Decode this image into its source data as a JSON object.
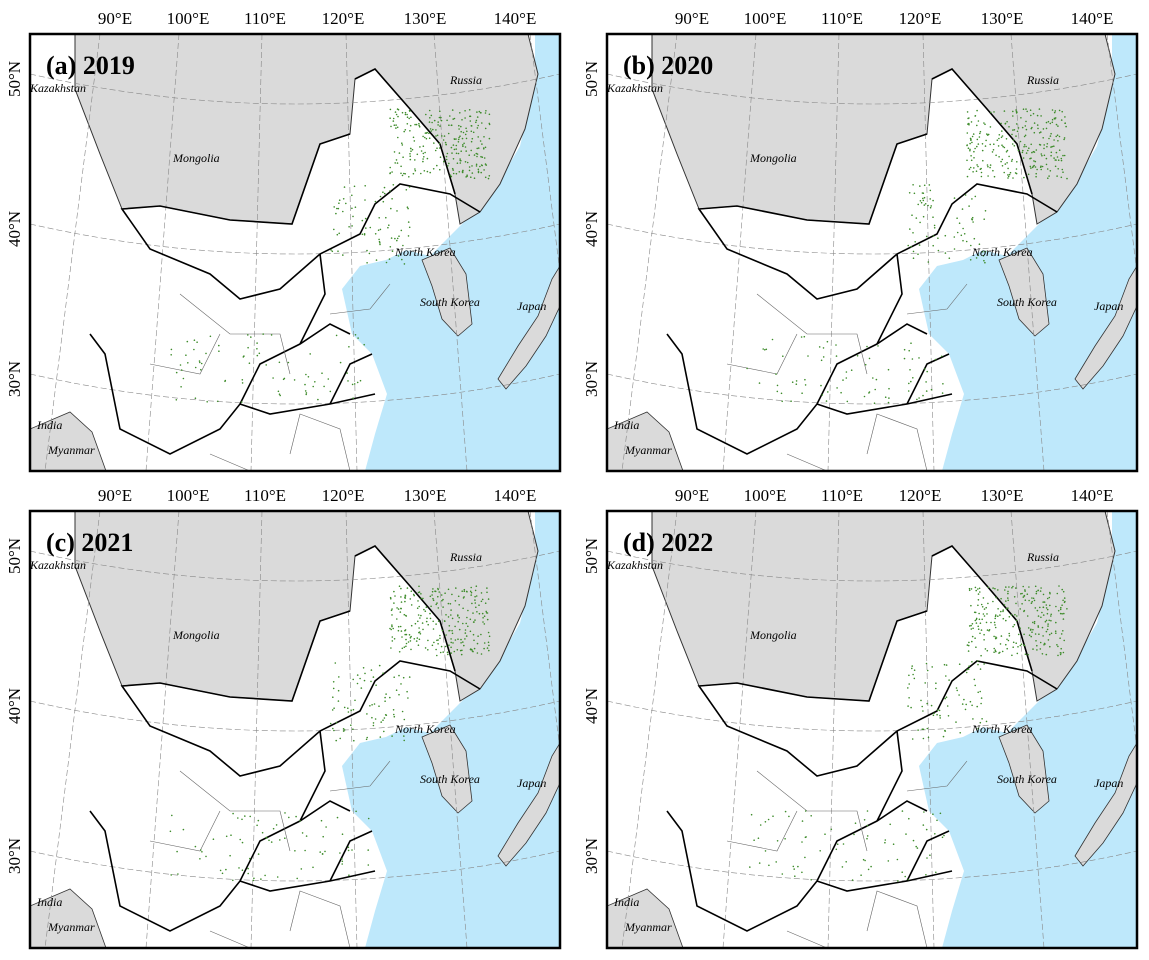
{
  "panels": [
    {
      "title": "(a) 2019",
      "lon_labels": [
        "90°E",
        "100°E",
        "110°E",
        "120°E",
        "130°E",
        "140°E"
      ],
      "lat_labels": [
        "50°N",
        "40°N",
        "30°N"
      ],
      "places": [
        "Kazakhstan",
        "Russia",
        "Mongolia",
        "North Korea",
        "South Korea",
        "Japan",
        "India",
        "Myanmar"
      ]
    },
    {
      "title": "(b) 2020",
      "lon_labels": [
        "90°E",
        "100°E",
        "110°E",
        "120°E",
        "130°E",
        "140°E"
      ],
      "lat_labels": [
        "50°N",
        "40°N",
        "30°N"
      ],
      "places": [
        "Kazakhstan",
        "Russia",
        "Mongolia",
        "North Korea",
        "South Korea",
        "Japan",
        "India",
        "Myanmar"
      ]
    },
    {
      "title": "(c) 2021",
      "lon_labels": [
        "90°E",
        "100°E",
        "110°E",
        "120°E",
        "130°E",
        "140°E"
      ],
      "lat_labels": [
        "50°N",
        "40°N",
        "30°N"
      ],
      "places": [
        "Kazakhstan",
        "Russia",
        "Mongolia",
        "North Korea",
        "South Korea",
        "Japan",
        "India",
        "Myanmar"
      ]
    },
    {
      "title": "(d) 2022",
      "lon_labels": [
        "90°E",
        "100°E",
        "110°E",
        "120°E",
        "130°E",
        "140°E"
      ],
      "lat_labels": [
        "50°N",
        "40°N",
        "30°N"
      ],
      "places": [
        "Kazakhstan",
        "Russia",
        "Mongolia",
        "North Korea",
        "South Korea",
        "Japan",
        "India",
        "Myanmar"
      ]
    }
  ]
}
